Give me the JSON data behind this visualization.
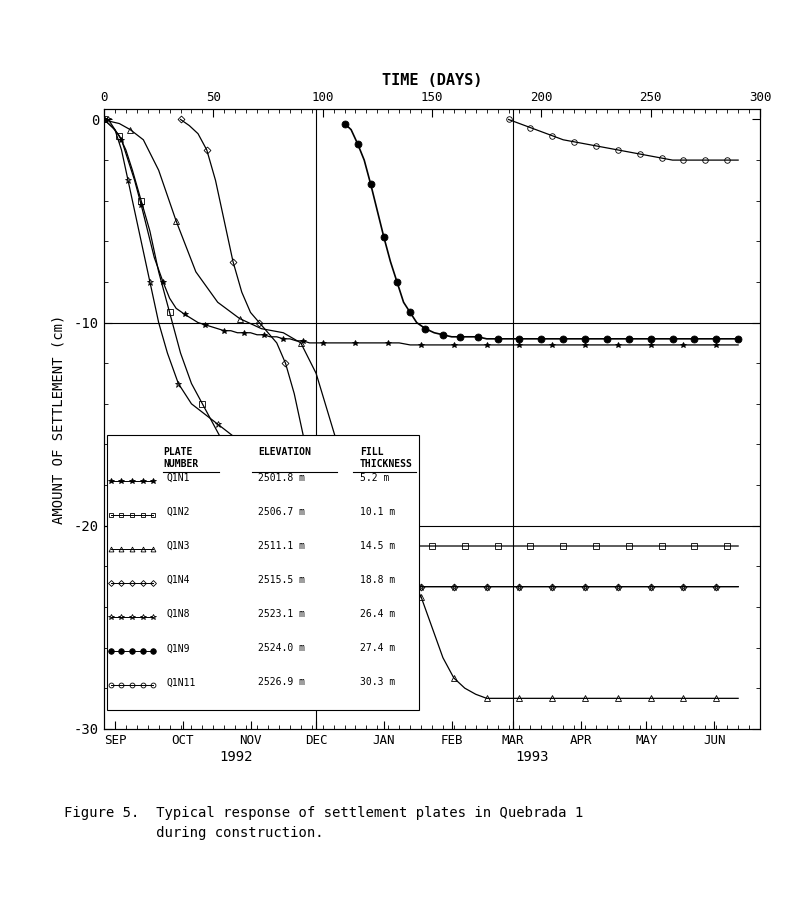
{
  "title_top": "TIME (DAYS)",
  "ylabel": "AMOUNT OF SETTLEMENT (cm)",
  "xlim": [
    0,
    300
  ],
  "ylim": [
    -30,
    0.5
  ],
  "yticks": [
    0,
    -10,
    -20,
    -30
  ],
  "xticks_top": [
    0,
    50,
    100,
    150,
    200,
    250,
    300
  ],
  "month_labels": [
    "SEP",
    "OCT",
    "NOV",
    "DEC",
    "JAN",
    "FEB",
    "MAR",
    "APR",
    "MAY",
    "JUN"
  ],
  "month_positions": [
    5,
    36,
    67,
    97,
    128,
    159,
    187,
    218,
    248,
    279
  ],
  "vlines": [
    97,
    187
  ],
  "hlines": [
    -10,
    -20
  ],
  "caption_line1": "Figure 5.  Typical response of settlement plates in Quebrada 1",
  "caption_line2": "           during construction.",
  "legend_rows": [
    [
      "Q1N1",
      "2501.8 m",
      "5.2 m"
    ],
    [
      "Q1N2",
      "2506.7 m",
      "10.1 m"
    ],
    [
      "Q1N3",
      "2511.1 m",
      "14.5 m"
    ],
    [
      "Q1N4",
      "2515.5 m",
      "18.8 m"
    ],
    [
      "Q1N8",
      "2523.1 m",
      "26.4 m"
    ],
    [
      "Q1N9",
      "2524.0 m",
      "27.4 m"
    ],
    [
      "Q1N11",
      "2526.9 m",
      "30.3 m"
    ]
  ],
  "Q1N1_x": [
    0,
    2,
    5,
    8,
    11,
    14,
    17,
    20,
    23,
    27,
    30,
    33,
    37,
    40,
    43,
    46,
    49,
    52,
    55,
    58,
    61,
    64,
    67,
    70,
    73,
    76,
    79,
    82,
    85,
    88,
    91,
    94,
    97,
    100,
    105,
    110,
    115,
    120,
    125,
    130,
    135,
    140,
    145,
    150,
    155,
    160,
    165,
    170,
    175,
    180,
    185,
    190,
    195,
    200,
    205,
    210,
    215,
    220,
    225,
    230,
    235,
    240,
    245,
    250,
    255,
    260,
    265,
    270,
    275,
    280,
    285,
    290
  ],
  "Q1N1_y": [
    0,
    -0.2,
    -0.5,
    -1.0,
    -2.0,
    -3.0,
    -4.2,
    -5.5,
    -6.8,
    -8.0,
    -8.8,
    -9.3,
    -9.6,
    -9.8,
    -10.0,
    -10.1,
    -10.2,
    -10.3,
    -10.4,
    -10.4,
    -10.5,
    -10.5,
    -10.5,
    -10.6,
    -10.6,
    -10.7,
    -10.7,
    -10.8,
    -10.8,
    -10.9,
    -10.9,
    -11.0,
    -11.0,
    -11.0,
    -11.0,
    -11.0,
    -11.0,
    -11.0,
    -11.0,
    -11.0,
    -11.0,
    -11.1,
    -11.1,
    -11.1,
    -11.1,
    -11.1,
    -11.1,
    -11.1,
    -11.1,
    -11.1,
    -11.1,
    -11.1,
    -11.1,
    -11.1,
    -11.1,
    -11.1,
    -11.1,
    -11.1,
    -11.1,
    -11.1,
    -11.1,
    -11.1,
    -11.1,
    -11.1,
    -11.1,
    -11.1,
    -11.1,
    -11.1,
    -11.1,
    -11.1,
    -11.1,
    -11.1
  ],
  "Q1N2_x": [
    0,
    2,
    4,
    7,
    10,
    13,
    17,
    21,
    25,
    30,
    35,
    40,
    45,
    50,
    55,
    60,
    65,
    70,
    75,
    80,
    85,
    90,
    95,
    100,
    105,
    110,
    115,
    120,
    125,
    130,
    135,
    140,
    145,
    150,
    155,
    160,
    165,
    170,
    175,
    180,
    185,
    190,
    195,
    200,
    205,
    210,
    215,
    220,
    225,
    230,
    235,
    240,
    245,
    250,
    255,
    260,
    265,
    270,
    275,
    280,
    285,
    290
  ],
  "Q1N2_y": [
    0,
    -0.2,
    -0.4,
    -0.8,
    -1.5,
    -2.5,
    -4.0,
    -5.5,
    -7.5,
    -9.5,
    -11.5,
    -13.0,
    -14.0,
    -15.0,
    -16.0,
    -17.5,
    -19.0,
    -20.0,
    -20.5,
    -20.8,
    -21.0,
    -21.0,
    -21.0,
    -21.0,
    -21.0,
    -21.0,
    -21.0,
    -21.0,
    -21.0,
    -21.0,
    -21.0,
    -21.0,
    -21.0,
    -21.0,
    -21.0,
    -21.0,
    -21.0,
    -21.0,
    -21.0,
    -21.0,
    -21.0,
    -21.0,
    -21.0,
    -21.0,
    -21.0,
    -21.0,
    -21.0,
    -21.0,
    -21.0,
    -21.0,
    -21.0,
    -21.0,
    -21.0,
    -21.0,
    -21.0,
    -21.0,
    -21.0,
    -21.0,
    -21.0,
    -21.0,
    -21.0,
    -21.0
  ],
  "Q1N3_x": [
    0,
    3,
    7,
    12,
    18,
    25,
    33,
    42,
    52,
    62,
    72,
    82,
    90,
    97,
    104,
    111,
    118,
    125,
    130,
    135,
    140,
    145,
    150,
    155,
    160,
    165,
    170,
    175,
    180,
    185,
    190,
    195,
    200,
    205,
    210,
    215,
    220,
    225,
    230,
    235,
    240,
    245,
    250,
    255,
    260,
    265,
    270,
    275,
    280,
    285,
    290
  ],
  "Q1N3_y": [
    0,
    -0.1,
    -0.2,
    -0.5,
    -1.0,
    -2.5,
    -5.0,
    -7.5,
    -9.0,
    -9.8,
    -10.3,
    -10.5,
    -11.0,
    -12.5,
    -15.0,
    -17.5,
    -19.5,
    -21.0,
    -21.5,
    -22.0,
    -22.5,
    -23.5,
    -25.0,
    -26.5,
    -27.5,
    -28.0,
    -28.3,
    -28.5,
    -28.5,
    -28.5,
    -28.5,
    -28.5,
    -28.5,
    -28.5,
    -28.5,
    -28.5,
    -28.5,
    -28.5,
    -28.5,
    -28.5,
    -28.5,
    -28.5,
    -28.5,
    -28.5,
    -28.5,
    -28.5,
    -28.5,
    -28.5,
    -28.5,
    -28.5,
    -28.5
  ],
  "Q1N4_x": [
    35,
    39,
    43,
    47,
    51,
    55,
    59,
    63,
    67,
    71,
    75,
    79,
    83,
    87,
    91,
    95,
    99,
    103,
    107,
    111,
    115,
    119,
    123,
    127,
    131,
    135,
    140,
    145,
    150,
    155,
    160,
    165,
    170,
    175,
    180,
    185,
    190,
    195,
    200,
    205,
    210,
    215,
    220,
    225,
    230,
    235,
    240,
    245,
    250,
    255,
    260,
    265,
    270,
    275,
    280,
    285,
    290
  ],
  "Q1N4_y": [
    0,
    -0.3,
    -0.7,
    -1.5,
    -3.0,
    -5.0,
    -7.0,
    -8.5,
    -9.5,
    -10.0,
    -10.5,
    -11.0,
    -12.0,
    -13.5,
    -15.5,
    -18.0,
    -19.5,
    -20.5,
    -21.0,
    -21.2,
    -21.5,
    -21.8,
    -22.0,
    -22.2,
    -22.5,
    -22.7,
    -22.9,
    -23.0,
    -23.0,
    -23.0,
    -23.0,
    -23.0,
    -23.0,
    -23.0,
    -23.0,
    -23.0,
    -23.0,
    -23.0,
    -23.0,
    -23.0,
    -23.0,
    -23.0,
    -23.0,
    -23.0,
    -23.0,
    -23.0,
    -23.0,
    -23.0,
    -23.0,
    -23.0,
    -23.0,
    -23.0,
    -23.0,
    -23.0,
    -23.0,
    -23.0,
    -23.0
  ],
  "Q1N8_x": [
    2,
    5,
    8,
    11,
    14,
    17,
    21,
    25,
    29,
    34,
    40,
    46,
    52,
    58,
    64,
    70,
    76,
    82,
    88,
    94,
    97,
    102,
    107,
    112,
    117,
    122,
    127,
    130,
    135,
    140,
    145,
    150,
    155,
    160,
    165,
    170,
    175,
    180,
    185,
    190,
    195,
    200,
    205,
    210,
    215,
    220,
    225,
    230,
    235,
    240,
    245,
    250,
    255,
    260,
    265,
    270,
    275,
    280,
    285,
    290
  ],
  "Q1N8_y": [
    0,
    -0.5,
    -1.5,
    -3.0,
    -4.5,
    -6.0,
    -8.0,
    -10.0,
    -11.5,
    -13.0,
    -14.0,
    -14.5,
    -15.0,
    -15.5,
    -16.0,
    -16.5,
    -17.0,
    -18.0,
    -19.5,
    -21.0,
    -21.5,
    -21.8,
    -22.0,
    -22.2,
    -22.4,
    -22.6,
    -22.7,
    -22.8,
    -22.9,
    -23.0,
    -23.0,
    -23.0,
    -23.0,
    -23.0,
    -23.0,
    -23.0,
    -23.0,
    -23.0,
    -23.0,
    -23.0,
    -23.0,
    -23.0,
    -23.0,
    -23.0,
    -23.0,
    -23.0,
    -23.0,
    -23.0,
    -23.0,
    -23.0,
    -23.0,
    -23.0,
    -23.0,
    -23.0,
    -23.0,
    -23.0,
    -23.0,
    -23.0,
    -23.0,
    -23.0
  ],
  "Q1N9_x": [
    110,
    113,
    116,
    119,
    122,
    125,
    128,
    131,
    134,
    137,
    140,
    143,
    147,
    151,
    155,
    159,
    163,
    167,
    171,
    175,
    180,
    185,
    190,
    195,
    200,
    205,
    210,
    215,
    220,
    225,
    230,
    235,
    240,
    245,
    250,
    255,
    260,
    265,
    270,
    275,
    280,
    285,
    290
  ],
  "Q1N9_y": [
    -0.2,
    -0.5,
    -1.2,
    -2.0,
    -3.2,
    -4.5,
    -5.8,
    -7.0,
    -8.0,
    -9.0,
    -9.5,
    -10.0,
    -10.3,
    -10.5,
    -10.6,
    -10.7,
    -10.7,
    -10.7,
    -10.7,
    -10.8,
    -10.8,
    -10.8,
    -10.8,
    -10.8,
    -10.8,
    -10.8,
    -10.8,
    -10.8,
    -10.8,
    -10.8,
    -10.8,
    -10.8,
    -10.8,
    -10.8,
    -10.8,
    -10.8,
    -10.8,
    -10.8,
    -10.8,
    -10.8,
    -10.8,
    -10.8,
    -10.8
  ],
  "Q1N11_x": [
    185,
    190,
    195,
    200,
    205,
    210,
    215,
    220,
    225,
    230,
    235,
    240,
    245,
    250,
    255,
    260,
    265,
    270,
    275,
    280,
    285,
    290
  ],
  "Q1N11_y": [
    0,
    -0.2,
    -0.4,
    -0.6,
    -0.8,
    -1.0,
    -1.1,
    -1.2,
    -1.3,
    -1.4,
    -1.5,
    -1.6,
    -1.7,
    -1.8,
    -1.9,
    -2.0,
    -2.0,
    -2.0,
    -2.0,
    -2.0,
    -2.0,
    -2.0
  ],
  "background": "#ffffff"
}
